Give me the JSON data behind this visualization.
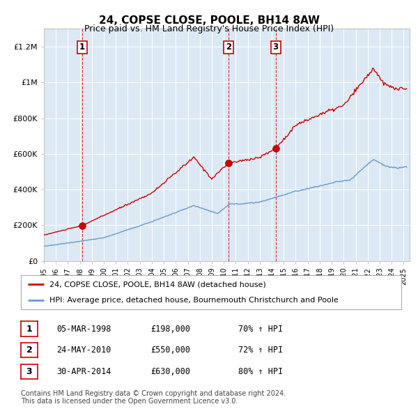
{
  "title": "24, COPSE CLOSE, POOLE, BH14 8AW",
  "subtitle": "Price paid vs. HM Land Registry's House Price Index (HPI)",
  "background_color": "#dce9f5",
  "plot_bg_color": "#dce9f5",
  "red_line_color": "#cc0000",
  "blue_line_color": "#6699cc",
  "grid_color": "#ffffff",
  "sale_points": [
    {
      "date_num": 1998.17,
      "price": 198000,
      "label": "1"
    },
    {
      "date_num": 2010.39,
      "price": 550000,
      "label": "2"
    },
    {
      "date_num": 2014.33,
      "price": 630000,
      "label": "3"
    }
  ],
  "sale_vlines": [
    1998.17,
    2010.39,
    2014.33
  ],
  "legend_line1": "24, COPSE CLOSE, POOLE, BH14 8AW (detached house)",
  "legend_line2": "HPI: Average price, detached house, Bournemouth Christchurch and Poole",
  "table_rows": [
    {
      "num": "1",
      "date": "05-MAR-1998",
      "price": "£198,000",
      "hpi": "70% ↑ HPI"
    },
    {
      "num": "2",
      "date": "24-MAY-2010",
      "price": "£550,000",
      "hpi": "72% ↑ HPI"
    },
    {
      "num": "3",
      "date": "30-APR-2014",
      "price": "£630,000",
      "hpi": "80% ↑ HPI"
    }
  ],
  "footnote1": "Contains HM Land Registry data © Crown copyright and database right 2024.",
  "footnote2": "This data is licensed under the Open Government Licence v3.0.",
  "ylim": [
    0,
    1300000
  ],
  "yticks": [
    0,
    200000,
    400000,
    600000,
    800000,
    1000000,
    1200000
  ],
  "ytick_labels": [
    "£0",
    "£200K",
    "£400K",
    "£600K",
    "£800K",
    "£1M",
    "£1.2M"
  ],
  "xmin": 1995.0,
  "xmax": 2025.5
}
